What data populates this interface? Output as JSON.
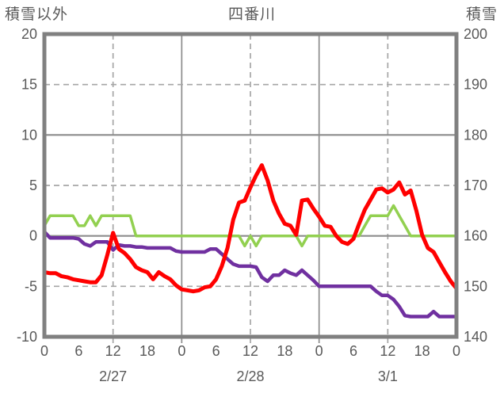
{
  "title": "四番川",
  "left_axis_label": "積雪以外",
  "right_axis_label": "積雪",
  "colors": {
    "frame": "#808080",
    "grid": "#A6A6A6",
    "grid_solid": "#8C8C8C",
    "text": "#595959",
    "red": "#FF0000",
    "purple": "#7030A0",
    "green": "#92D050"
  },
  "chart_data": {
    "type": "line",
    "title": "四番川",
    "x_unit": "hours from 2/27 00:00",
    "x_range_hours": [
      0,
      72
    ],
    "x_tick_hours": [
      0,
      6,
      12,
      18,
      24,
      30,
      36,
      42,
      48,
      54,
      60,
      66,
      72
    ],
    "x_tick_labels": [
      "0",
      "6",
      "12",
      "18",
      "0",
      "6",
      "12",
      "18",
      "0",
      "6",
      "12",
      "18",
      "0"
    ],
    "date_labels": [
      {
        "label": "2/27",
        "hour": 12
      },
      {
        "label": "2/28",
        "hour": 36
      },
      {
        "label": "3/1",
        "hour": 60
      }
    ],
    "left_axis": {
      "label": "積雪以外",
      "min": -10,
      "max": 20,
      "ticks": [
        20,
        15,
        10,
        5,
        0,
        -5,
        -10
      ]
    },
    "right_axis": {
      "label": "積雪",
      "min": 140,
      "max": 200,
      "ticks": [
        200,
        190,
        180,
        170,
        160,
        150,
        140
      ]
    },
    "grid": {
      "h_solid_values": [
        10,
        0
      ],
      "h_dashed_values": [
        15,
        5,
        -5
      ],
      "v_solid_hours": [
        24,
        48
      ],
      "v_dashed_hours": [
        12,
        36,
        60
      ]
    },
    "legend": "none shown",
    "series": [
      {
        "name": "green-line",
        "color": "#92D050",
        "width": 3.5,
        "axis": "left",
        "values": [
          1,
          2,
          2,
          2,
          2,
          2,
          1,
          1,
          2,
          1,
          2,
          2,
          2,
          2,
          2,
          2,
          0,
          0,
          0,
          0,
          0,
          0,
          0,
          0,
          0,
          0,
          0,
          0,
          0,
          0,
          0,
          0,
          0,
          0,
          0,
          -1,
          0,
          -1,
          0,
          0,
          0,
          0,
          0,
          0,
          0,
          -1,
          0,
          0,
          0,
          0,
          0,
          0,
          0,
          0,
          0,
          0,
          1,
          2,
          2,
          2,
          2,
          3,
          2,
          1,
          0,
          0,
          0,
          0,
          0,
          0,
          0,
          0,
          0
        ]
      },
      {
        "name": "purple-line",
        "color": "#7030A0",
        "width": 4.5,
        "axis": "left",
        "values": [
          0.4,
          -0.2,
          -0.2,
          -0.2,
          -0.2,
          -0.2,
          -0.3,
          -0.8,
          -1.0,
          -0.6,
          -0.6,
          -0.6,
          -1.4,
          -0.9,
          -1.0,
          -1.0,
          -1.1,
          -1.1,
          -1.2,
          -1.2,
          -1.2,
          -1.2,
          -1.2,
          -1.5,
          -1.6,
          -1.6,
          -1.6,
          -1.6,
          -1.6,
          -1.3,
          -1.3,
          -1.8,
          -2.3,
          -2.8,
          -3.0,
          -3.0,
          -3.0,
          -3.1,
          -4.1,
          -4.5,
          -3.9,
          -3.9,
          -3.4,
          -3.7,
          -3.9,
          -3.4,
          -3.9,
          -4.4,
          -5.0,
          -5.0,
          -5.0,
          -5.0,
          -5.0,
          -5.0,
          -5.0,
          -5.0,
          -5.0,
          -5.0,
          -5.5,
          -5.9,
          -5.9,
          -6.3,
          -7.0,
          -7.9,
          -8.0,
          -8.0,
          -8.0,
          -8.0,
          -7.5,
          -8.0,
          -8.0,
          -8.0,
          -8.0
        ]
      },
      {
        "name": "red-line",
        "color": "#FF0000",
        "width": 5,
        "axis": "left",
        "values": [
          -3.6,
          -3.7,
          -3.7,
          -4.0,
          -4.1,
          -4.3,
          -4.4,
          -4.5,
          -4.6,
          -4.6,
          -3.9,
          -1.9,
          0.3,
          -1.3,
          -1.7,
          -2.3,
          -3.1,
          -3.4,
          -3.6,
          -4.3,
          -3.6,
          -4.0,
          -4.3,
          -4.9,
          -5.3,
          -5.4,
          -5.5,
          -5.4,
          -5.1,
          -5.0,
          -4.3,
          -3.0,
          -1.2,
          1.6,
          3.3,
          3.5,
          4.8,
          6.0,
          7.0,
          5.5,
          3.5,
          2.2,
          1.2,
          1.0,
          0.1,
          3.5,
          3.6,
          2.7,
          1.9,
          1.0,
          0.9,
          0.0,
          -0.6,
          -0.8,
          -0.3,
          1.2,
          2.6,
          3.6,
          4.6,
          4.7,
          4.3,
          4.6,
          5.3,
          4.1,
          4.5,
          2.5,
          0.1,
          -1.2,
          -1.6,
          -2.6,
          -3.6,
          -4.5,
          -5.2
        ]
      }
    ]
  }
}
